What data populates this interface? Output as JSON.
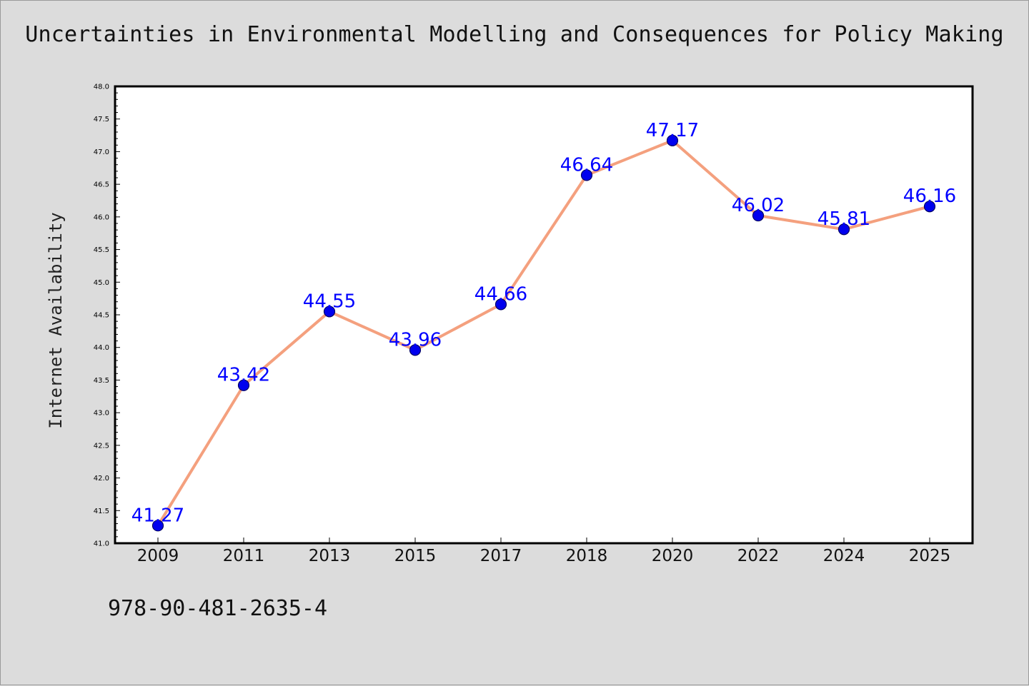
{
  "title": "Uncertainties in Environmental Modelling and Consequences for Policy Making",
  "isbn": "978-90-481-2635-4",
  "colors": {
    "background": "#dcdcdc",
    "plot_background": "#ffffff",
    "line": "#f4a07e",
    "marker_fill": "#0000ee",
    "marker_edge": "#000066",
    "data_label": "#0000ff"
  },
  "chart_data": {
    "type": "line",
    "title": "Uncertainties in Environmental Modelling and Consequences for Policy Making",
    "xlabel": "",
    "ylabel": "Internet Availability",
    "categories": [
      "2009",
      "2011",
      "2013",
      "2015",
      "2017",
      "2018",
      "2020",
      "2022",
      "2024",
      "2025"
    ],
    "series": [
      {
        "values": [
          41.27,
          43.42,
          44.55,
          43.96,
          44.66,
          46.64,
          47.17,
          46.02,
          45.81,
          46.16
        ],
        "data_labels": [
          "41.27",
          "43.42",
          "44.55",
          "43.96",
          "44.66",
          "46.64",
          "47.17",
          "46.02",
          "45.81",
          "46.16"
        ]
      }
    ],
    "ylim": [
      41.0,
      48.0
    ],
    "yticks": [
      "41.0",
      "41.5",
      "42.0",
      "42.5",
      "43.0",
      "43.5",
      "44.0",
      "44.5",
      "45.0",
      "45.5",
      "46.0",
      "46.5",
      "47.0",
      "47.5",
      "48.0"
    ],
    "grid": false,
    "legend": "none",
    "markers": "circle"
  }
}
